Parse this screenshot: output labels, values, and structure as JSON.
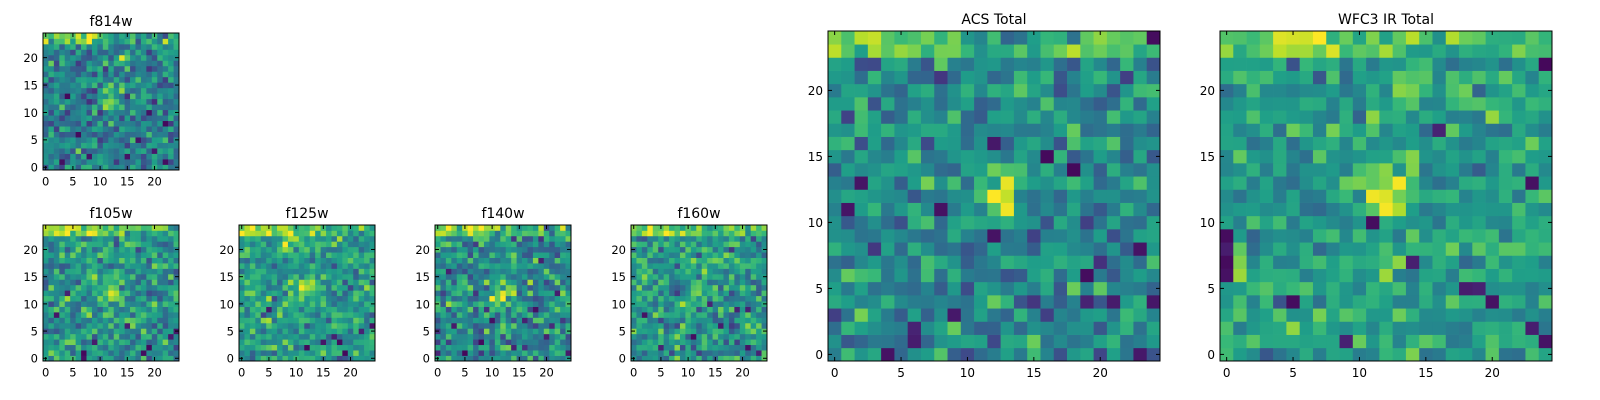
{
  "figure": {
    "description_free": true,
    "colormap": {
      "name": "viridis",
      "stops": [
        "#440154",
        "#482878",
        "#3e4989",
        "#31688e",
        "#26828e",
        "#1f9e89",
        "#35b779",
        "#6ece58",
        "#b5de2b",
        "#fde725"
      ]
    },
    "axis_color": "#000000",
    "background": "#ffffff"
  },
  "chart_data": [
    {
      "type": "heatmap",
      "id": "f814w",
      "title": "f814w",
      "grid_size": 25,
      "seed": 814,
      "xlim": [
        -0.5,
        24.5
      ],
      "ylim": [
        -0.5,
        24.5
      ],
      "xticks": [
        0,
        5,
        10,
        15,
        20
      ],
      "yticks": [
        0,
        5,
        10,
        15,
        20
      ],
      "xticklabels": [
        "0",
        "5",
        "10",
        "15",
        "20"
      ],
      "yticklabels": [
        "0",
        "5",
        "10",
        "15",
        "20"
      ],
      "value_range": [
        0,
        1
      ],
      "base_level": 0.44,
      "noise": 0.17,
      "top_band": 0.38,
      "hotspots": [
        {
          "x": 12,
          "y": 12,
          "amp": 0.45,
          "sigma": 1.3
        },
        {
          "x": 14,
          "y": 20,
          "amp": 0.35,
          "sigma": 0.8
        }
      ],
      "cold_pixels": [
        [
          3,
          1
        ],
        [
          8,
          2
        ],
        [
          15,
          2
        ],
        [
          20,
          3
        ],
        [
          22,
          1
        ],
        [
          6,
          6
        ],
        [
          17,
          5
        ],
        [
          19,
          10
        ],
        [
          4,
          13
        ],
        [
          22,
          8
        ]
      ]
    },
    {
      "type": "heatmap",
      "id": "f105w",
      "title": "f105w",
      "grid_size": 25,
      "seed": 105,
      "xlim": [
        -0.5,
        24.5
      ],
      "ylim": [
        -0.5,
        24.5
      ],
      "xticks": [
        0,
        5,
        10,
        15,
        20
      ],
      "yticks": [
        0,
        5,
        10,
        15,
        20
      ],
      "xticklabels": [
        "0",
        "5",
        "10",
        "15",
        "20"
      ],
      "yticklabels": [
        "0",
        "5",
        "10",
        "15",
        "20"
      ],
      "value_range": [
        0,
        1
      ],
      "base_level": 0.52,
      "noise": 0.17,
      "top_band": 0.35,
      "hotspots": [
        {
          "x": 12,
          "y": 12,
          "amp": 0.4,
          "sigma": 1.2
        }
      ],
      "cold_pixels": [
        [
          7,
          0
        ],
        [
          7,
          1
        ],
        [
          18,
          1
        ],
        [
          19,
          2
        ],
        [
          23,
          4
        ],
        [
          24,
          5
        ],
        [
          2,
          8
        ],
        [
          15,
          6
        ],
        [
          9,
          3
        ],
        [
          4,
          12
        ]
      ]
    },
    {
      "type": "heatmap",
      "id": "f125w",
      "title": "f125w",
      "grid_size": 25,
      "seed": 125,
      "xlim": [
        -0.5,
        24.5
      ],
      "ylim": [
        -0.5,
        24.5
      ],
      "xticks": [
        0,
        5,
        10,
        15,
        20
      ],
      "yticks": [
        0,
        5,
        10,
        15,
        20
      ],
      "xticklabels": [
        "0",
        "5",
        "10",
        "15",
        "20"
      ],
      "yticklabels": [
        "0",
        "5",
        "10",
        "15",
        "20"
      ],
      "value_range": [
        0,
        1
      ],
      "base_level": 0.55,
      "noise": 0.16,
      "top_band": 0.3,
      "hotspots": [
        {
          "x": 12,
          "y": 13,
          "amp": 0.3,
          "sigma": 1.5
        },
        {
          "x": 8,
          "y": 21,
          "amp": 0.3,
          "sigma": 0.8
        }
      ],
      "cold_pixels": [
        [
          15,
          3
        ],
        [
          17,
          4
        ],
        [
          18,
          3
        ],
        [
          22,
          5
        ],
        [
          19,
          1
        ],
        [
          12,
          2
        ],
        [
          5,
          9
        ],
        [
          24,
          6
        ]
      ]
    },
    {
      "type": "heatmap",
      "id": "f140w",
      "title": "f140w",
      "grid_size": 25,
      "seed": 140,
      "xlim": [
        -0.5,
        24.5
      ],
      "ylim": [
        -0.5,
        24.5
      ],
      "xticks": [
        0,
        5,
        10,
        15,
        20
      ],
      "yticks": [
        0,
        5,
        10,
        15,
        20
      ],
      "xticklabels": [
        "0",
        "5",
        "10",
        "15",
        "20"
      ],
      "yticklabels": [
        "0",
        "5",
        "10",
        "15",
        "20"
      ],
      "value_range": [
        0,
        1
      ],
      "base_level": 0.48,
      "noise": 0.19,
      "top_band": 0.35,
      "hotspots": [
        {
          "x": 12,
          "y": 12,
          "amp": 0.32,
          "sigma": 1.8
        }
      ],
      "cold_pixels": [
        [
          3,
          6
        ],
        [
          8,
          3
        ],
        [
          20,
          4
        ],
        [
          18,
          9
        ],
        [
          5,
          1
        ],
        [
          14,
          2
        ],
        [
          22,
          12
        ],
        [
          2,
          16
        ],
        [
          19,
          18
        ],
        [
          10,
          7
        ],
        [
          24,
          1
        ]
      ]
    },
    {
      "type": "heatmap",
      "id": "f160w",
      "title": "f160w",
      "grid_size": 25,
      "seed": 160,
      "xlim": [
        -0.5,
        24.5
      ],
      "ylim": [
        -0.5,
        24.5
      ],
      "xticks": [
        0,
        5,
        10,
        15,
        20
      ],
      "yticks": [
        0,
        5,
        10,
        15,
        20
      ],
      "xticklabels": [
        "0",
        "5",
        "10",
        "15",
        "20"
      ],
      "yticklabels": [
        "0",
        "5",
        "10",
        "15",
        "20"
      ],
      "value_range": [
        0,
        1
      ],
      "base_level": 0.52,
      "noise": 0.17,
      "top_band": 0.33,
      "hotspots": [
        {
          "x": 12,
          "y": 12,
          "amp": 0.3,
          "sigma": 1.3
        },
        {
          "x": 14,
          "y": 18,
          "amp": 0.25,
          "sigma": 0.8
        }
      ],
      "cold_pixels": [
        [
          14,
          10
        ],
        [
          19,
          9
        ],
        [
          21,
          9
        ],
        [
          16,
          6
        ],
        [
          21,
          2
        ],
        [
          23,
          1
        ],
        [
          5,
          2
        ],
        [
          11,
          4
        ],
        [
          2,
          8
        ]
      ]
    },
    {
      "type": "heatmap",
      "id": "acs_total",
      "title": "ACS Total",
      "grid_size": 25,
      "seed": 2025,
      "xlim": [
        -0.5,
        24.5
      ],
      "ylim": [
        -0.5,
        24.5
      ],
      "xticks": [
        0,
        5,
        10,
        15,
        20
      ],
      "yticks": [
        0,
        5,
        10,
        15,
        20
      ],
      "xticklabels": [
        "0",
        "5",
        "10",
        "15",
        "20"
      ],
      "yticklabels": [
        "0",
        "5",
        "10",
        "15",
        "20"
      ],
      "value_range": [
        0,
        1
      ],
      "base_level": 0.47,
      "noise": 0.16,
      "top_band": 0.35,
      "hotspots": [
        {
          "x": 12.5,
          "y": 12,
          "amp": 0.48,
          "sigma": 1.2
        },
        {
          "x": 14,
          "y": 20,
          "amp": 0.4,
          "sigma": 0.7
        }
      ],
      "cold_pixels": [
        [
          2,
          13
        ],
        [
          8,
          11
        ],
        [
          16,
          15
        ],
        [
          18,
          14
        ],
        [
          12,
          9
        ],
        [
          1,
          11
        ],
        [
          23,
          8
        ],
        [
          19,
          6
        ],
        [
          19,
          4
        ],
        [
          21,
          4
        ],
        [
          24,
          4
        ],
        [
          6,
          2
        ],
        [
          6,
          1
        ],
        [
          23,
          0
        ],
        [
          4,
          0
        ],
        [
          9,
          3
        ],
        [
          24,
          24
        ],
        [
          12,
          16
        ]
      ]
    },
    {
      "type": "heatmap",
      "id": "wfc3_ir_total",
      "title": "WFC3 IR Total",
      "grid_size": 25,
      "seed": 3333,
      "xlim": [
        -0.5,
        24.5
      ],
      "ylim": [
        -0.5,
        24.5
      ],
      "xticks": [
        0,
        5,
        10,
        15,
        20
      ],
      "yticks": [
        0,
        5,
        10,
        15,
        20
      ],
      "xticklabels": [
        "0",
        "5",
        "10",
        "15",
        "20"
      ],
      "yticklabels": [
        "0",
        "5",
        "10",
        "15",
        "20"
      ],
      "value_range": [
        0,
        1
      ],
      "base_level": 0.55,
      "noise": 0.15,
      "top_band": 0.3,
      "hotspots": [
        {
          "x": 12,
          "y": 12.5,
          "amp": 0.42,
          "sigma": 1.3
        },
        {
          "x": 14,
          "y": 20,
          "amp": 0.35,
          "sigma": 0.7
        }
      ],
      "cold_pixels": [
        [
          0,
          7
        ],
        [
          0,
          8
        ],
        [
          0,
          9
        ],
        [
          0,
          6
        ],
        [
          14,
          7
        ],
        [
          18,
          5
        ],
        [
          19,
          5
        ],
        [
          20,
          4
        ],
        [
          9,
          1
        ],
        [
          5,
          4
        ],
        [
          23,
          13
        ],
        [
          24,
          1
        ],
        [
          23,
          2
        ],
        [
          11,
          10
        ],
        [
          24,
          22
        ],
        [
          16,
          17
        ]
      ]
    }
  ]
}
